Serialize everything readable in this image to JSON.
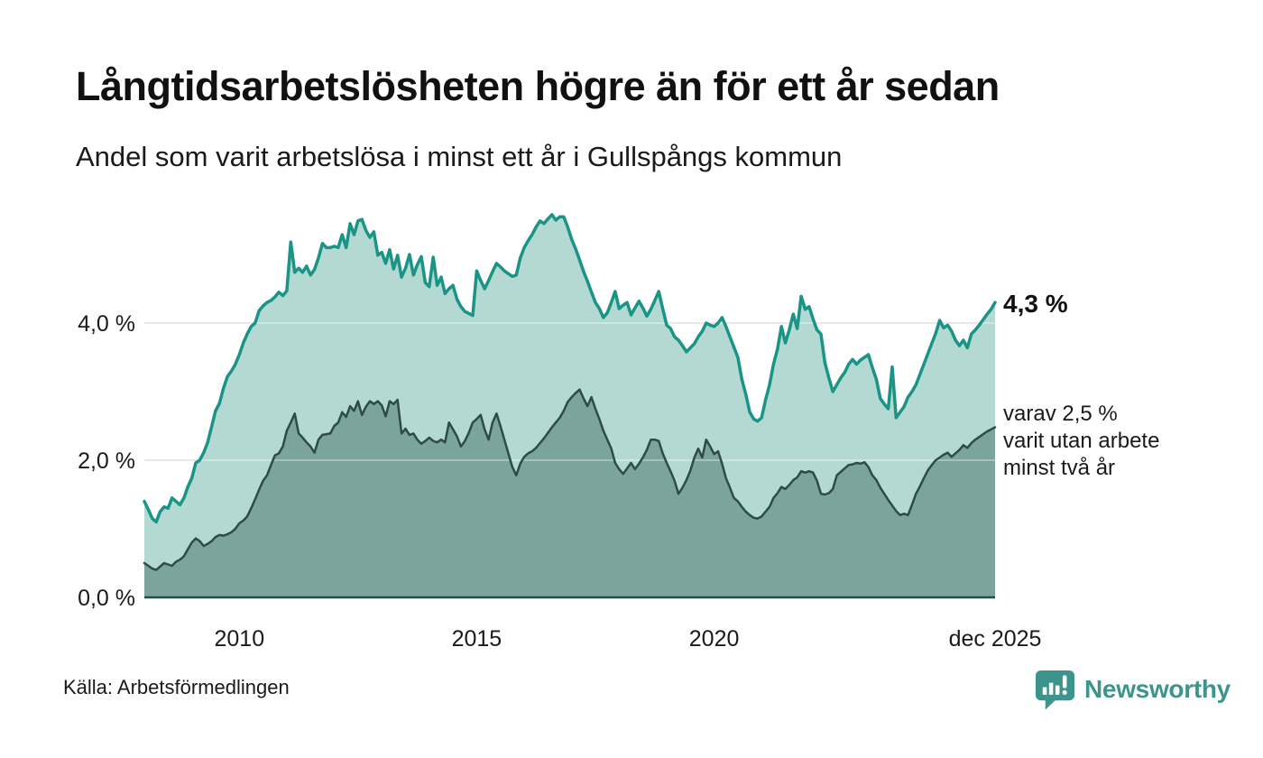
{
  "header": {
    "title": "Långtidsarbetslösheten högre än för ett år sedan",
    "subtitle": "Andel som varit arbetslösa i minst ett år i Gullspångs kommun"
  },
  "footer": {
    "source": "Källa: Arbetsförmedlingen",
    "brand": "Newsworthy"
  },
  "colors": {
    "line_one_year": "#1a9486",
    "fill_one_year": "#b3d9d2",
    "line_two_years": "#2e4b47",
    "fill_two_years": "#7ba49d",
    "gridline": "#d0d0d0",
    "axis_baseline": "#2e4b47",
    "text": "#1a1a1a",
    "brand_teal": "#3d948c"
  },
  "chart_data": {
    "type": "area",
    "title": "Långtidsarbetslösheten högre än för ett år sedan",
    "subtitle": "Andel som varit arbetslösa i minst ett år i Gullspångs kommun",
    "x_start": "2008-01",
    "x_end": "2025-12",
    "x_interval": "month",
    "ylim": [
      0,
      5.8
    ],
    "grid": true,
    "legend": "none",
    "y_ticks": [
      {
        "value": 0,
        "label": "0,0 %"
      },
      {
        "value": 2,
        "label": "2,0 %"
      },
      {
        "value": 4,
        "label": "4,0 %"
      }
    ],
    "x_ticks": [
      {
        "month_index": 24,
        "label": "2010"
      },
      {
        "month_index": 84,
        "label": "2015"
      },
      {
        "month_index": 144,
        "label": "2020"
      },
      {
        "month_index": 215,
        "label": "dec 2025"
      }
    ],
    "annotations": {
      "latest_value": "4,3 %",
      "secondary": "varav 2,5 %\nvarit utan arbete\nminst två år"
    },
    "series": [
      {
        "name": "Andel arbetslösa minst ett år",
        "color": "#1a9486",
        "fill": "#b3d9d2",
        "stroke_width": 3.5,
        "values": [
          1.4,
          1.28,
          1.15,
          1.1,
          1.25,
          1.32,
          1.3,
          1.45,
          1.4,
          1.35,
          1.45,
          1.61,
          1.74,
          1.96,
          2.0,
          2.11,
          2.26,
          2.49,
          2.72,
          2.83,
          3.05,
          3.22,
          3.3,
          3.4,
          3.54,
          3.71,
          3.84,
          3.95,
          4.0,
          4.18,
          4.25,
          4.3,
          4.33,
          4.38,
          4.45,
          4.4,
          4.47,
          5.18,
          4.74,
          4.8,
          4.74,
          4.83,
          4.7,
          4.78,
          4.95,
          5.16,
          5.1,
          5.1,
          5.12,
          5.1,
          5.29,
          5.1,
          5.45,
          5.29,
          5.49,
          5.51,
          5.35,
          5.25,
          5.33,
          4.99,
          5.03,
          4.87,
          5.07,
          4.79,
          4.99,
          4.67,
          4.8,
          5.0,
          4.7,
          4.85,
          4.97,
          4.59,
          4.53,
          4.96,
          4.55,
          4.67,
          4.43,
          4.5,
          4.55,
          4.35,
          4.24,
          4.17,
          4.14,
          4.11,
          4.76,
          4.62,
          4.5,
          4.62,
          4.75,
          4.87,
          4.82,
          4.76,
          4.72,
          4.68,
          4.7,
          4.95,
          5.1,
          5.2,
          5.29,
          5.4,
          5.49,
          5.45,
          5.52,
          5.58,
          5.5,
          5.55,
          5.55,
          5.4,
          5.22,
          5.08,
          4.92,
          4.75,
          4.61,
          4.45,
          4.3,
          4.21,
          4.08,
          4.15,
          4.3,
          4.46,
          4.21,
          4.26,
          4.3,
          4.12,
          4.22,
          4.32,
          4.22,
          4.1,
          4.2,
          4.33,
          4.46,
          4.21,
          3.97,
          3.92,
          3.8,
          3.75,
          3.67,
          3.58,
          3.64,
          3.7,
          3.8,
          3.88,
          4.0,
          3.97,
          3.95,
          4.0,
          4.08,
          3.95,
          3.8,
          3.65,
          3.5,
          3.18,
          2.96,
          2.7,
          2.6,
          2.57,
          2.62,
          2.88,
          3.1,
          3.4,
          3.62,
          3.95,
          3.71,
          3.9,
          4.13,
          3.92,
          4.39,
          4.2,
          4.24,
          4.06,
          3.9,
          3.84,
          3.42,
          3.2,
          3.0,
          3.1,
          3.2,
          3.28,
          3.4,
          3.47,
          3.4,
          3.46,
          3.5,
          3.54,
          3.35,
          3.18,
          2.9,
          2.82,
          2.75,
          3.36,
          2.62,
          2.7,
          2.78,
          2.92,
          3.0,
          3.1,
          3.25,
          3.4,
          3.55,
          3.7,
          3.85,
          4.04,
          3.93,
          3.97,
          3.88,
          3.75,
          3.67,
          3.75,
          3.64,
          3.84,
          3.9,
          3.97,
          4.05,
          4.13,
          4.2,
          4.3
        ]
      },
      {
        "name": "Varav utan arbete minst två år",
        "color": "#2e4b47",
        "fill": "#7ba49d",
        "stroke_width": 2.5,
        "values": [
          0.5,
          0.46,
          0.42,
          0.4,
          0.45,
          0.5,
          0.48,
          0.46,
          0.52,
          0.55,
          0.6,
          0.7,
          0.8,
          0.86,
          0.82,
          0.75,
          0.78,
          0.82,
          0.88,
          0.91,
          0.9,
          0.92,
          0.95,
          1.0,
          1.08,
          1.12,
          1.18,
          1.3,
          1.43,
          1.57,
          1.7,
          1.78,
          1.93,
          2.07,
          2.1,
          2.2,
          2.43,
          2.55,
          2.68,
          2.39,
          2.33,
          2.26,
          2.2,
          2.11,
          2.3,
          2.37,
          2.38,
          2.39,
          2.5,
          2.55,
          2.7,
          2.63,
          2.79,
          2.72,
          2.86,
          2.66,
          2.78,
          2.86,
          2.82,
          2.86,
          2.8,
          2.64,
          2.86,
          2.82,
          2.88,
          2.39,
          2.46,
          2.37,
          2.39,
          2.3,
          2.24,
          2.28,
          2.33,
          2.28,
          2.26,
          2.3,
          2.26,
          2.55,
          2.45,
          2.35,
          2.2,
          2.28,
          2.4,
          2.55,
          2.6,
          2.66,
          2.45,
          2.3,
          2.55,
          2.68,
          2.5,
          2.3,
          2.1,
          1.9,
          1.78,
          1.95,
          2.05,
          2.1,
          2.13,
          2.18,
          2.25,
          2.32,
          2.4,
          2.48,
          2.55,
          2.62,
          2.72,
          2.85,
          2.92,
          2.98,
          3.03,
          2.9,
          2.79,
          2.92,
          2.75,
          2.6,
          2.43,
          2.3,
          2.17,
          1.96,
          1.87,
          1.8,
          1.88,
          1.96,
          1.87,
          1.95,
          2.04,
          2.15,
          2.3,
          2.3,
          2.28,
          2.1,
          1.96,
          1.84,
          1.7,
          1.51,
          1.6,
          1.71,
          1.85,
          2.04,
          2.17,
          2.04,
          2.3,
          2.2,
          2.09,
          2.13,
          1.95,
          1.74,
          1.6,
          1.45,
          1.4,
          1.32,
          1.25,
          1.2,
          1.16,
          1.15,
          1.18,
          1.25,
          1.32,
          1.45,
          1.52,
          1.61,
          1.58,
          1.64,
          1.71,
          1.75,
          1.84,
          1.82,
          1.84,
          1.82,
          1.7,
          1.51,
          1.5,
          1.52,
          1.58,
          1.78,
          1.83,
          1.88,
          1.93,
          1.94,
          1.96,
          1.95,
          1.97,
          1.9,
          1.78,
          1.71,
          1.6,
          1.51,
          1.42,
          1.34,
          1.26,
          1.2,
          1.22,
          1.2,
          1.35,
          1.51,
          1.62,
          1.74,
          1.85,
          1.93,
          2.0,
          2.04,
          2.08,
          2.11,
          2.05,
          2.1,
          2.15,
          2.22,
          2.18,
          2.25,
          2.3,
          2.34,
          2.38,
          2.42,
          2.45,
          2.48
        ]
      }
    ]
  }
}
